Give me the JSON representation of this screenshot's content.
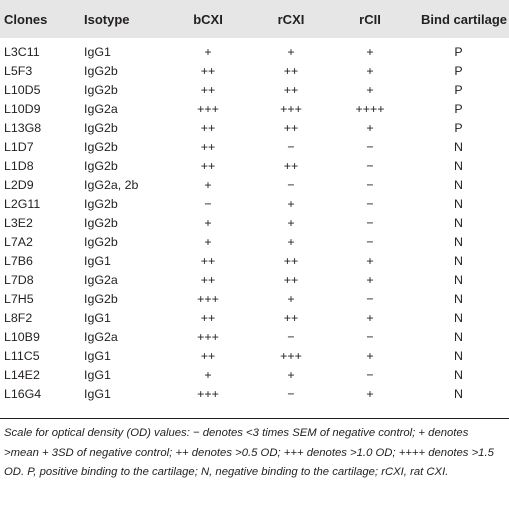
{
  "table": {
    "headers": [
      "Clones",
      "Isotype",
      "bCXI",
      "rCXI",
      "rCII",
      "Bind cartilage"
    ],
    "rows": [
      [
        "L3C11",
        "IgG1",
        "+",
        "+",
        "+",
        "P"
      ],
      [
        "L5F3",
        "IgG2b",
        "++",
        "++",
        "+",
        "P"
      ],
      [
        "L10D5",
        "IgG2b",
        "++",
        "++",
        "+",
        "P"
      ],
      [
        "L10D9",
        "IgG2a",
        "+++",
        "+++",
        "++++",
        "P"
      ],
      [
        "L13G8",
        "IgG2b",
        "++",
        "++",
        "+",
        "P"
      ],
      [
        "L1D7",
        "IgG2b",
        "++",
        "−",
        "−",
        "N"
      ],
      [
        "L1D8",
        "IgG2b",
        "++",
        "++",
        "−",
        "N"
      ],
      [
        "L2D9",
        "IgG2a, 2b",
        "+",
        "−",
        "−",
        "N"
      ],
      [
        "L2G11",
        "IgG2b",
        "−",
        "+",
        "−",
        "N"
      ],
      [
        "L3E2",
        "IgG2b",
        "+",
        "+",
        "−",
        "N"
      ],
      [
        "L7A2",
        "IgG2b",
        "+",
        "+",
        "−",
        "N"
      ],
      [
        "L7B6",
        "IgG1",
        "++",
        "++",
        "+",
        "N"
      ],
      [
        "L7D8",
        "IgG2a",
        "++",
        "++",
        "+",
        "N"
      ],
      [
        "L7H5",
        "IgG2b",
        "+++",
        "+",
        "−",
        "N"
      ],
      [
        "L8F2",
        "IgG1",
        "++",
        "++",
        "+",
        "N"
      ],
      [
        "L10B9",
        "IgG2a",
        "+++",
        "−",
        "−",
        "N"
      ],
      [
        "L11C5",
        "IgG1",
        "++",
        "+++",
        "+",
        "N"
      ],
      [
        "L14E2",
        "IgG1",
        "+",
        "+",
        "−",
        "N"
      ],
      [
        "L16G4",
        "IgG1",
        "+++",
        "−",
        "+",
        "N"
      ]
    ]
  },
  "footnote": "Scale for optical density (OD) values: − denotes <3 times SEM of negative control; + denotes >mean + 3SD of negative control; ++ denotes >0.5 OD; +++ denotes >1.0 OD; ++++ denotes >1.5 OD. P, positive binding to the cartilage; N, negative binding to the cartilage; rCXI, rat CXI.",
  "colors": {
    "header_background": "#e6e6e6",
    "text": "#231f20"
  }
}
